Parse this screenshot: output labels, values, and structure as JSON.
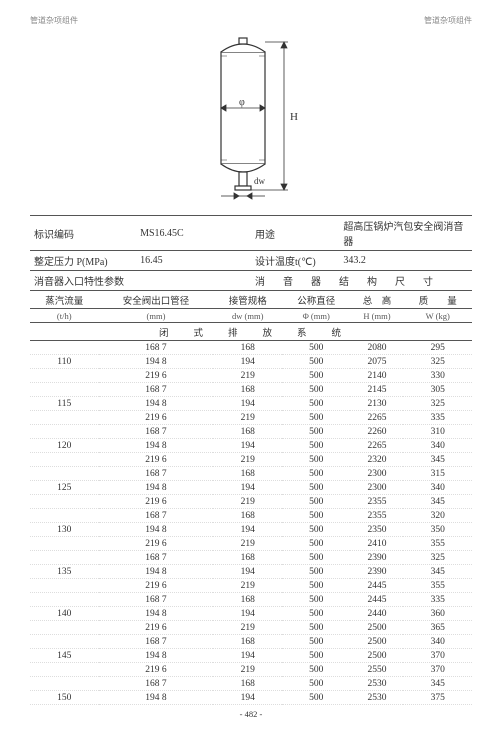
{
  "header": {
    "left": "管道杂项组件",
    "right": "管道杂项组件"
  },
  "diagram": {
    "labels": {
      "phi": "φ",
      "H": "H",
      "dw": "dw"
    },
    "stroke": "#333333",
    "fill": "#ffffff"
  },
  "spec": {
    "rows": [
      {
        "l_label": "标识编码",
        "l_value": "MS16.45C",
        "r_label": "用途",
        "r_value": "超高压锅炉汽包安全阀消音器"
      },
      {
        "l_label": "整定压力 P(MPa)",
        "l_value": "16.45",
        "r_label": "设计温度t(℃)",
        "r_value": "343.2"
      },
      {
        "l_label": "消音器入口特性参数",
        "l_value": "",
        "r_label": "消　音　器　结　构　尺　寸",
        "r_value": ""
      }
    ]
  },
  "dataTable": {
    "headers1": [
      "蒸汽流量",
      "安全阀出口管径",
      "接管规格",
      "公称直径",
      "总　高",
      "质　　量"
    ],
    "headers2": [
      "(t/h)",
      "(mm)",
      "dw (mm)",
      "Φ (mm)",
      "H (mm)",
      "W  (kg)"
    ],
    "subHeader": "闭　　式　　排　　放　　系　　统",
    "rows": [
      {
        "c1": "",
        "c2": "168 7",
        "c3": "168",
        "c4": "500",
        "c5": "2080",
        "c6": "295"
      },
      {
        "c1": "110",
        "c2": "194 8",
        "c3": "194",
        "c4": "500",
        "c5": "2075",
        "c6": "325"
      },
      {
        "c1": "",
        "c2": "219 6",
        "c3": "219",
        "c4": "500",
        "c5": "2140",
        "c6": "330"
      },
      {
        "c1": "",
        "c2": "168 7",
        "c3": "168",
        "c4": "500",
        "c5": "2145",
        "c6": "305"
      },
      {
        "c1": "115",
        "c2": "194 8",
        "c3": "194",
        "c4": "500",
        "c5": "2130",
        "c6": "325"
      },
      {
        "c1": "",
        "c2": "219 6",
        "c3": "219",
        "c4": "500",
        "c5": "2265",
        "c6": "335"
      },
      {
        "c1": "",
        "c2": "168 7",
        "c3": "168",
        "c4": "500",
        "c5": "2260",
        "c6": "310"
      },
      {
        "c1": "120",
        "c2": "194 8",
        "c3": "194",
        "c4": "500",
        "c5": "2265",
        "c6": "340"
      },
      {
        "c1": "",
        "c2": "219 6",
        "c3": "219",
        "c4": "500",
        "c5": "2320",
        "c6": "345"
      },
      {
        "c1": "",
        "c2": "168 7",
        "c3": "168",
        "c4": "500",
        "c5": "2300",
        "c6": "315"
      },
      {
        "c1": "125",
        "c2": "194 8",
        "c3": "194",
        "c4": "500",
        "c5": "2300",
        "c6": "340"
      },
      {
        "c1": "",
        "c2": "219 6",
        "c3": "219",
        "c4": "500",
        "c5": "2355",
        "c6": "345"
      },
      {
        "c1": "",
        "c2": "168 7",
        "c3": "168",
        "c4": "500",
        "c5": "2355",
        "c6": "320"
      },
      {
        "c1": "130",
        "c2": "194 8",
        "c3": "194",
        "c4": "500",
        "c5": "2350",
        "c6": "350"
      },
      {
        "c1": "",
        "c2": "219 6",
        "c3": "219",
        "c4": "500",
        "c5": "2410",
        "c6": "355"
      },
      {
        "c1": "",
        "c2": "168 7",
        "c3": "168",
        "c4": "500",
        "c5": "2390",
        "c6": "325"
      },
      {
        "c1": "135",
        "c2": "194 8",
        "c3": "194",
        "c4": "500",
        "c5": "2390",
        "c6": "345"
      },
      {
        "c1": "",
        "c2": "219 6",
        "c3": "219",
        "c4": "500",
        "c5": "2445",
        "c6": "355"
      },
      {
        "c1": "",
        "c2": "168 7",
        "c3": "168",
        "c4": "500",
        "c5": "2445",
        "c6": "335"
      },
      {
        "c1": "140",
        "c2": "194 8",
        "c3": "194",
        "c4": "500",
        "c5": "2440",
        "c6": "360"
      },
      {
        "c1": "",
        "c2": "219 6",
        "c3": "219",
        "c4": "500",
        "c5": "2500",
        "c6": "365"
      },
      {
        "c1": "",
        "c2": "168 7",
        "c3": "168",
        "c4": "500",
        "c5": "2500",
        "c6": "340"
      },
      {
        "c1": "145",
        "c2": "194 8",
        "c3": "194",
        "c4": "500",
        "c5": "2500",
        "c6": "370"
      },
      {
        "c1": "",
        "c2": "219 6",
        "c3": "219",
        "c4": "500",
        "c5": "2550",
        "c6": "370"
      },
      {
        "c1": "",
        "c2": "168 7",
        "c3": "168",
        "c4": "500",
        "c5": "2530",
        "c6": "345"
      },
      {
        "c1": "150",
        "c2": "194 8",
        "c3": "194",
        "c4": "500",
        "c5": "2530",
        "c6": "375"
      }
    ]
  },
  "footer": "- 482 -"
}
